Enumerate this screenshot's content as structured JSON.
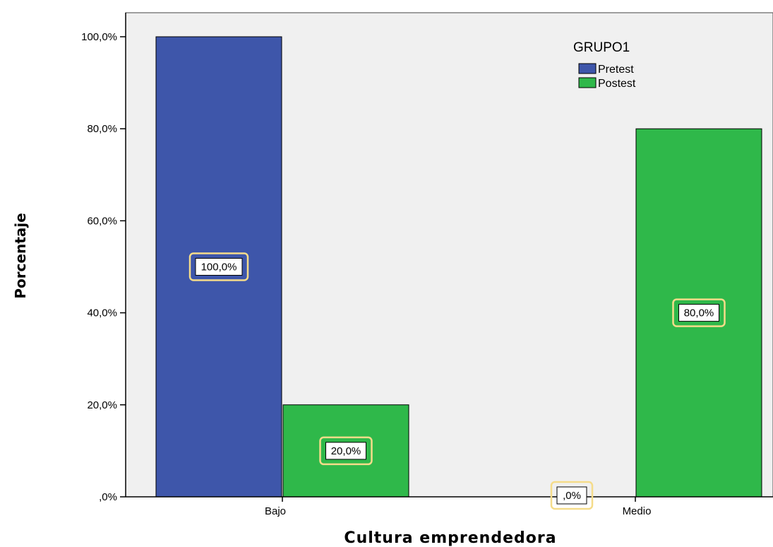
{
  "chart_data": {
    "type": "bar",
    "categories": [
      "Bajo",
      "Medio"
    ],
    "series": [
      {
        "name": "Pretest",
        "values": [
          100.0,
          0.0
        ],
        "color": "#3e56aa"
      },
      {
        "name": "Postest",
        "values": [
          20.0,
          80.0
        ],
        "color": "#2fb84a"
      }
    ],
    "data_labels": [
      {
        "category": "Bajo",
        "series": "Pretest",
        "text": "100,0%"
      },
      {
        "category": "Bajo",
        "series": "Postest",
        "text": "20,0%"
      },
      {
        "category": "Medio",
        "series": "Pretest",
        "text": ",0%"
      },
      {
        "category": "Medio",
        "series": "Postest",
        "text": "80,0%"
      }
    ],
    "xlabel": "Cultura emprendedora",
    "ylabel": "Porcentaje",
    "ylim": [
      0,
      100
    ],
    "yticks": [
      0,
      20,
      40,
      60,
      80,
      100
    ],
    "ytick_labels": [
      ",0%",
      "20,0%",
      "40,0%",
      "60,0%",
      "80,0%",
      "100,0%"
    ],
    "legend": {
      "title": "GRUPO1",
      "placement": "top-right"
    },
    "grid": false,
    "plot_background": "#f0f0f0",
    "label_frame_color": "#f5dc8a"
  }
}
